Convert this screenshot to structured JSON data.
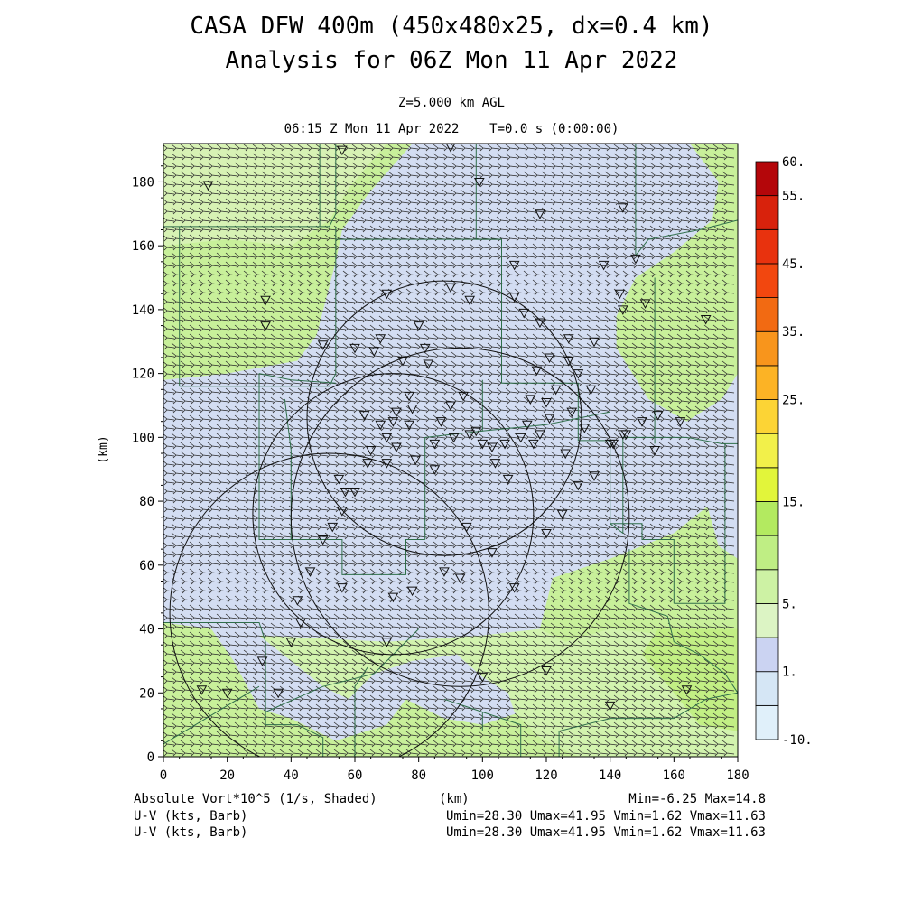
{
  "title_line1": "CASA DFW 400m (450x480x25, dx=0.4 km)",
  "title_line2": "Analysis for 06Z Mon 11 Apr 2022",
  "subtitle_height": "Z=5.000 km AGL",
  "subtitle_time": "06:15 Z Mon 11 Apr 2022    T=0.0 s (0:00:00)",
  "footer": {
    "field_label": "Absolute Vort*10^5 (1/s, Shaded)",
    "xunit_label": "(km)",
    "minmax": "Min=-6.25 Max=14.8",
    "vector_label_1": "U-V (kts, Barb)",
    "vector_label_2": "U-V (kts, Barb)",
    "vector_stats_1": "Umin=28.30 Umax=41.95 Vmin=1.62 Vmax=11.63",
    "vector_stats_2": "Umin=28.30 Umax=41.95 Vmin=1.62 Vmax=11.63"
  },
  "colors": {
    "cat_light_blue": "#d3ddf2",
    "cat_pale_green": "#dcf5c0",
    "cat_light_green": "#c6f08e",
    "cat_yellow_green": "#b5ee64",
    "vector": "#2a2a2a",
    "boundary": "#2f6e4a"
  },
  "chart_data": {
    "type": "heatmap",
    "xlabel": "(km)",
    "ylabel": "(km)",
    "xlim": [
      0,
      180
    ],
    "ylim": [
      0,
      192
    ],
    "xticks": [
      "0",
      "20",
      "40",
      "60",
      "80",
      "100",
      "120",
      "140",
      "160",
      "180"
    ],
    "yticks": [
      "0",
      "20",
      "40",
      "60",
      "80",
      "100",
      "120",
      "140",
      "160",
      "180"
    ],
    "legend": {
      "placement": "right",
      "bands": [
        {
          "from": -10,
          "to": 0,
          "color": "#e0f0fa"
        },
        {
          "from": 0,
          "to": 1,
          "color": "#d5e6f5"
        },
        {
          "from": 1,
          "to": 3,
          "color": "#cbd3f2"
        },
        {
          "from": 3,
          "to": 5,
          "color": "#dcf4c4"
        },
        {
          "from": 5,
          "to": 7,
          "color": "#cdf2a4"
        },
        {
          "from": 7,
          "to": 10,
          "color": "#bfee84"
        },
        {
          "from": 10,
          "to": 15,
          "color": "#b3ea60"
        },
        {
          "from": 15,
          "to": 17,
          "color": "#e2f53a"
        },
        {
          "from": 17,
          "to": 20,
          "color": "#f2f04a"
        },
        {
          "from": 20,
          "to": 25,
          "color": "#fcd435"
        },
        {
          "from": 25,
          "to": 30,
          "color": "#fcb325"
        },
        {
          "from": 30,
          "to": 35,
          "color": "#f8951c"
        },
        {
          "from": 35,
          "to": 40,
          "color": "#f26a12"
        },
        {
          "from": 40,
          "to": 45,
          "color": "#f2470f"
        },
        {
          "from": 45,
          "to": 50,
          "color": "#e8320e"
        },
        {
          "from": 50,
          "to": 55,
          "color": "#d8220c"
        },
        {
          "from": 55,
          "to": 60,
          "color": "#b4060a"
        }
      ],
      "labels": [
        {
          "text": "60.",
          "value": 60
        },
        {
          "text": "55.",
          "value": 55
        },
        {
          "text": "45.",
          "value": 45
        },
        {
          "text": "35.",
          "value": 35
        },
        {
          "text": "25.",
          "value": 25
        },
        {
          "text": "15.",
          "value": 15
        },
        {
          "text": "5.",
          "value": 5
        },
        {
          "text": "1.",
          "value": 1
        },
        {
          "text": "-10.",
          "value": -10
        }
      ]
    },
    "shaded_regions": [
      {
        "name": "blue-band",
        "category": "1-3",
        "color": "#d3ddf2",
        "polygon": [
          [
            78,
            192
          ],
          [
            165,
            192
          ],
          [
            174,
            180
          ],
          [
            172,
            168
          ],
          [
            160,
            158
          ],
          [
            148,
            150
          ],
          [
            142,
            138
          ],
          [
            142,
            128
          ],
          [
            152,
            112
          ],
          [
            164,
            105
          ],
          [
            175,
            112
          ],
          [
            180,
            120
          ],
          [
            180,
            80
          ],
          [
            170,
            78
          ],
          [
            160,
            70
          ],
          [
            140,
            62
          ],
          [
            122,
            56
          ],
          [
            118,
            40
          ],
          [
            110,
            25
          ],
          [
            112,
            14
          ],
          [
            100,
            10
          ],
          [
            88,
            12
          ],
          [
            76,
            18
          ],
          [
            70,
            10
          ],
          [
            54,
            5
          ],
          [
            40,
            12
          ],
          [
            30,
            15
          ],
          [
            22,
            30
          ],
          [
            15,
            40
          ],
          [
            0,
            42
          ],
          [
            0,
            118
          ],
          [
            20,
            120
          ],
          [
            42,
            124
          ],
          [
            48,
            132
          ],
          [
            54,
            155
          ],
          [
            56,
            165
          ],
          [
            64,
            176
          ]
        ]
      },
      {
        "name": "south-green",
        "category": "3-10",
        "color": "#d2f3ae",
        "polygon": [
          [
            30,
            38
          ],
          [
            70,
            36
          ],
          [
            100,
            38
          ],
          [
            118,
            40
          ],
          [
            126,
            36
          ],
          [
            140,
            40
          ],
          [
            160,
            38
          ],
          [
            175,
            40
          ],
          [
            180,
            40
          ],
          [
            180,
            0
          ],
          [
            130,
            0
          ],
          [
            118,
            6
          ],
          [
            110,
            14
          ],
          [
            108,
            20
          ],
          [
            100,
            25
          ],
          [
            92,
            32
          ],
          [
            78,
            30
          ],
          [
            66,
            26
          ],
          [
            58,
            18
          ],
          [
            50,
            22
          ],
          [
            40,
            30
          ]
        ]
      },
      {
        "name": "southeast-green",
        "category": "10-15",
        "color": "#c2ef84",
        "polygon": [
          [
            155,
            40
          ],
          [
            180,
            40
          ],
          [
            180,
            8
          ],
          [
            168,
            10
          ],
          [
            160,
            20
          ],
          [
            150,
            32
          ]
        ]
      },
      {
        "name": "east-blue-strip",
        "category": "1-3",
        "color": "#d3ddf2",
        "polygon": [
          [
            172,
            100
          ],
          [
            180,
            100
          ],
          [
            180,
            62
          ],
          [
            174,
            66
          ],
          [
            170,
            80
          ]
        ]
      },
      {
        "name": "northwest-pale",
        "category": "3-10",
        "color": "#d7f2b4",
        "polygon": [
          [
            0,
            192
          ],
          [
            70,
            192
          ],
          [
            58,
            178
          ],
          [
            52,
            168
          ],
          [
            40,
            160
          ],
          [
            20,
            162
          ],
          [
            0,
            160
          ]
        ]
      }
    ],
    "radar_circles": [
      {
        "cx": 88,
        "cy": 106,
        "r": 43
      },
      {
        "cx": 72,
        "cy": 76,
        "r": 44
      },
      {
        "cx": 93,
        "cy": 75,
        "r": 53
      },
      {
        "cx": 52,
        "cy": 45,
        "r": 50
      }
    ],
    "boundary_lines": [
      [
        [
          0,
          166
        ],
        [
          52,
          166
        ],
        [
          54,
          170
        ],
        [
          54,
          192
        ]
      ],
      [
        [
          49,
          192
        ],
        [
          49,
          166
        ]
      ],
      [
        [
          98,
          192
        ],
        [
          98,
          162
        ],
        [
          106,
          162
        ],
        [
          106,
          160
        ]
      ],
      [
        [
          148,
          192
        ],
        [
          148,
          157
        ]
      ],
      [
        [
          148,
          157
        ],
        [
          152,
          162
        ],
        [
          168,
          165
        ],
        [
          180,
          168
        ]
      ],
      [
        [
          5,
          166
        ],
        [
          5,
          116
        ]
      ],
      [
        [
          5,
          116
        ],
        [
          52,
          116
        ],
        [
          54,
          120
        ],
        [
          54,
          166
        ]
      ],
      [
        [
          54,
          162
        ],
        [
          106,
          162
        ]
      ],
      [
        [
          106,
          160
        ],
        [
          106,
          117
        ],
        [
          130,
          117
        ],
        [
          130,
          110
        ]
      ],
      [
        [
          30,
          120
        ],
        [
          30,
          68
        ],
        [
          56,
          68
        ],
        [
          56,
          57
        ],
        [
          76,
          57
        ],
        [
          76,
          68
        ],
        [
          82,
          68
        ]
      ],
      [
        [
          38,
          112
        ],
        [
          40,
          96
        ],
        [
          40,
          68
        ]
      ],
      [
        [
          30,
          120
        ],
        [
          40,
          118
        ],
        [
          54,
          117
        ]
      ],
      [
        [
          82,
          68
        ],
        [
          82,
          100
        ],
        [
          100,
          102
        ],
        [
          100,
          118
        ]
      ],
      [
        [
          100,
          102
        ],
        [
          120,
          104
        ],
        [
          140,
          108
        ]
      ],
      [
        [
          130,
          110
        ],
        [
          130,
          99
        ],
        [
          140,
          99
        ],
        [
          140,
          73
        ]
      ],
      [
        [
          140,
          73
        ],
        [
          144,
          70
        ],
        [
          144,
          100
        ],
        [
          152,
          100
        ]
      ],
      [
        [
          152,
          100
        ],
        [
          164,
          100
        ],
        [
          175,
          98
        ],
        [
          180,
          98
        ]
      ],
      [
        [
          154,
          150
        ],
        [
          154,
          98
        ]
      ],
      [
        [
          176,
          98
        ],
        [
          176,
          48
        ],
        [
          160,
          48
        ]
      ],
      [
        [
          140,
          73
        ],
        [
          150,
          73
        ],
        [
          150,
          68
        ],
        [
          160,
          68
        ],
        [
          160,
          48
        ]
      ],
      [
        [
          146,
          65
        ],
        [
          146,
          48
        ],
        [
          158,
          44
        ]
      ],
      [
        [
          0,
          4
        ],
        [
          20,
          16
        ],
        [
          30,
          22
        ]
      ],
      [
        [
          0,
          42
        ],
        [
          30,
          42
        ],
        [
          32,
          36
        ]
      ],
      [
        [
          32,
          36
        ],
        [
          32,
          10
        ],
        [
          42,
          10
        ],
        [
          50,
          6
        ],
        [
          50,
          0
        ]
      ],
      [
        [
          32,
          14
        ],
        [
          50,
          22
        ],
        [
          66,
          26
        ],
        [
          80,
          40
        ]
      ],
      [
        [
          60,
          0
        ],
        [
          60,
          22
        ],
        [
          64,
          28
        ]
      ],
      [
        [
          88,
          18
        ],
        [
          100,
          14
        ],
        [
          112,
          10
        ],
        [
          112,
          0
        ]
      ],
      [
        [
          100,
          14
        ],
        [
          100,
          8
        ]
      ],
      [
        [
          124,
          0
        ],
        [
          124,
          8
        ],
        [
          140,
          12
        ],
        [
          160,
          12
        ],
        [
          170,
          18
        ],
        [
          180,
          20
        ]
      ],
      [
        [
          158,
          44
        ],
        [
          160,
          36
        ],
        [
          168,
          32
        ],
        [
          176,
          26
        ],
        [
          180,
          20
        ]
      ]
    ],
    "stations": [
      [
        14,
        179
      ],
      [
        56,
        190
      ],
      [
        90,
        191
      ],
      [
        99,
        180
      ],
      [
        118,
        170
      ],
      [
        144,
        172
      ],
      [
        32,
        143
      ],
      [
        32,
        135
      ],
      [
        50,
        129
      ],
      [
        70,
        145
      ],
      [
        68,
        131
      ],
      [
        66,
        127
      ],
      [
        80,
        135
      ],
      [
        82,
        128
      ],
      [
        83,
        123
      ],
      [
        90,
        147
      ],
      [
        96,
        143
      ],
      [
        110,
        154
      ],
      [
        110,
        144
      ],
      [
        113,
        139
      ],
      [
        118,
        136
      ],
      [
        117,
        121
      ],
      [
        121,
        125
      ],
      [
        127,
        131
      ],
      [
        127,
        124
      ],
      [
        130,
        120
      ],
      [
        135,
        130
      ],
      [
        134,
        115
      ],
      [
        138,
        154
      ],
      [
        143,
        145
      ],
      [
        144,
        140
      ],
      [
        148,
        156
      ],
      [
        151,
        142
      ],
      [
        170,
        137
      ],
      [
        162,
        105
      ],
      [
        155,
        107
      ],
      [
        145,
        101
      ],
      [
        140,
        98
      ],
      [
        132,
        103
      ],
      [
        128,
        108
      ],
      [
        123,
        115
      ],
      [
        120,
        111
      ],
      [
        115,
        112
      ],
      [
        114,
        104
      ],
      [
        112,
        100
      ],
      [
        107,
        98
      ],
      [
        103,
        97
      ],
      [
        98,
        102
      ],
      [
        96,
        101
      ],
      [
        91,
        100
      ],
      [
        87,
        105
      ],
      [
        85,
        98
      ],
      [
        85,
        90
      ],
      [
        79,
        93
      ],
      [
        77,
        104
      ],
      [
        73,
        97
      ],
      [
        70,
        92
      ],
      [
        68,
        104
      ],
      [
        65,
        96
      ],
      [
        60,
        83
      ],
      [
        56,
        77
      ],
      [
        53,
        72
      ],
      [
        50,
        68
      ],
      [
        46,
        58
      ],
      [
        42,
        49
      ],
      [
        43,
        42
      ],
      [
        40,
        36
      ],
      [
        31,
        30
      ],
      [
        36,
        20
      ],
      [
        12,
        21
      ],
      [
        20,
        20
      ],
      [
        95,
        72
      ],
      [
        103,
        64
      ],
      [
        93,
        56
      ],
      [
        78,
        52
      ],
      [
        72,
        50
      ],
      [
        56,
        53
      ],
      [
        55,
        87
      ],
      [
        57,
        83
      ],
      [
        63,
        107
      ],
      [
        64,
        92
      ],
      [
        60,
        128
      ],
      [
        75,
        124
      ],
      [
        77,
        113
      ],
      [
        78,
        109
      ],
      [
        72,
        105
      ],
      [
        70,
        100
      ],
      [
        73,
        108
      ],
      [
        90,
        110
      ],
      [
        94,
        113
      ],
      [
        100,
        98
      ],
      [
        104,
        92
      ],
      [
        108,
        87
      ],
      [
        116,
        98
      ],
      [
        118,
        101
      ],
      [
        121,
        106
      ],
      [
        126,
        95
      ],
      [
        135,
        88
      ],
      [
        141,
        98
      ],
      [
        144,
        101
      ],
      [
        150,
        105
      ],
      [
        154,
        96
      ],
      [
        130,
        85
      ],
      [
        125,
        76
      ],
      [
        120,
        70
      ],
      [
        110,
        53
      ],
      [
        88,
        58
      ],
      [
        70,
        36
      ],
      [
        140,
        16
      ],
      [
        164,
        21
      ],
      [
        120,
        27
      ],
      [
        100,
        25
      ]
    ]
  }
}
